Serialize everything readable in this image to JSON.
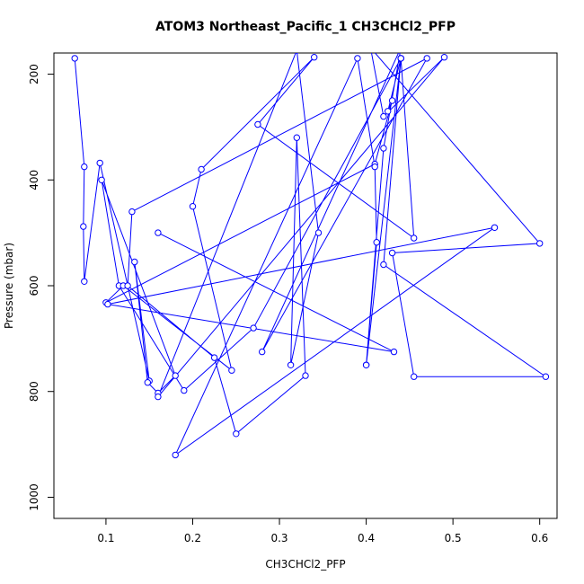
{
  "chart_data": {
    "type": "line",
    "title": "ATOM3 Northeast_Pacific_1 CH3CHCl2_PFP",
    "xlabel": "CH3CHCl2_PFP",
    "ylabel": "Pressure (mbar)",
    "xlim": [
      0.04,
      0.62
    ],
    "ylim": [
      1040,
      160
    ],
    "y_reversed": true,
    "x_ticks": [
      0.1,
      0.2,
      0.3,
      0.4,
      0.5,
      0.6
    ],
    "x_tick_labels": [
      "0.1",
      "0.2",
      "0.3",
      "0.4",
      "0.5",
      "0.6"
    ],
    "y_ticks": [
      200,
      400,
      600,
      800,
      1000
    ],
    "y_tick_labels": [
      "200",
      "400",
      "600",
      "800",
      "1000"
    ],
    "grid": false,
    "series_color": "#0000ff",
    "x": [
      0.064,
      0.075,
      0.074,
      0.075,
      0.093,
      0.15,
      0.133,
      0.148,
      0.16,
      0.18,
      0.095,
      0.115,
      0.19,
      0.27,
      0.44,
      0.425,
      0.43,
      0.41,
      0.1,
      0.12,
      0.245,
      0.2,
      0.21,
      0.34,
      0.275,
      0.455,
      0.44,
      0.4,
      0.42,
      0.44,
      0.28,
      0.47,
      0.13,
      0.125,
      0.225,
      0.25,
      0.33,
      0.32,
      0.313,
      0.345,
      0.32,
      0.16,
      0.49,
      0.42,
      0.405,
      0.6,
      0.43,
      0.455,
      0.607,
      0.42,
      0.44,
      0.4,
      0.412,
      0.41,
      0.39,
      0.18,
      0.548,
      0.102,
      0.432,
      0.16
    ],
    "y": [
      170,
      375,
      488,
      592,
      368,
      780,
      555,
      783,
      803,
      770,
      400,
      600,
      798,
      680,
      170,
      270,
      250,
      370,
      632,
      600,
      760,
      450,
      380,
      168,
      295,
      510,
      170,
      750,
      340,
      150,
      725,
      170,
      460,
      600,
      736,
      880,
      770,
      320,
      750,
      500,
      155,
      810,
      168,
      280,
      150,
      520,
      538,
      772,
      772,
      560,
      170,
      750,
      518,
      375,
      170,
      920,
      490,
      635,
      725,
      500
    ]
  }
}
